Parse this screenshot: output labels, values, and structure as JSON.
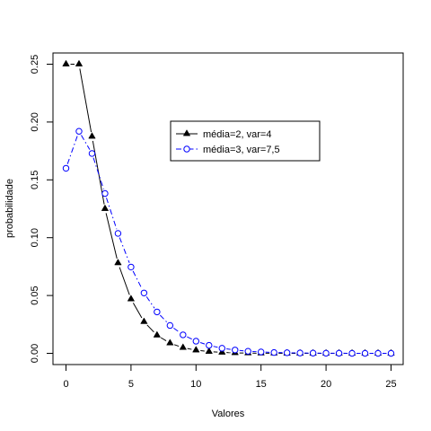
{
  "chart_data": {
    "type": "line",
    "title": "",
    "xlabel": "Valores",
    "ylabel": "probabilidade",
    "xlim": [
      0,
      25
    ],
    "ylim": [
      0,
      0.25
    ],
    "x_ticks": [
      0,
      5,
      10,
      15,
      20,
      25
    ],
    "x_tick_labels": [
      "0",
      "5",
      "10",
      "15",
      "20",
      "25"
    ],
    "y_ticks": [
      0.0,
      0.05,
      0.1,
      0.15,
      0.2,
      0.25
    ],
    "y_tick_labels": [
      "0.00",
      "0.05",
      "0.10",
      "0.15",
      "0.20",
      "0.25"
    ],
    "grid": false,
    "legend_position": "upper-center",
    "x": [
      0,
      1,
      2,
      3,
      4,
      5,
      6,
      7,
      8,
      9,
      10,
      11,
      12,
      13,
      14,
      15,
      16,
      17,
      18,
      19,
      20,
      21,
      22,
      23,
      24,
      25
    ],
    "series": [
      {
        "name": "média=2, var=4",
        "color": "#000000",
        "marker": "filled-triangle",
        "line_style": "solid",
        "values": [
          0.25,
          0.25,
          0.1875,
          0.125,
          0.0781,
          0.0469,
          0.0273,
          0.0156,
          0.0088,
          0.0049,
          0.0027,
          0.0015,
          0.0008,
          0.0004,
          0.0002,
          0.0001,
          0.0001,
          0.0,
          0.0,
          0.0,
          0.0,
          0.0,
          0.0,
          0.0,
          0.0,
          0.0
        ]
      },
      {
        "name": "média=3, var=7,5",
        "color": "#0000ff",
        "marker": "open-circle",
        "line_style": "dashdot",
        "values": [
          0.16,
          0.192,
          0.1728,
          0.1382,
          0.1037,
          0.0746,
          0.0522,
          0.0358,
          0.0241,
          0.016,
          0.0105,
          0.0069,
          0.0044,
          0.0029,
          0.0018,
          0.0012,
          0.0007,
          0.0005,
          0.0003,
          0.0002,
          0.0001,
          0.0001,
          0.0,
          0.0,
          0.0,
          0.0
        ]
      }
    ]
  }
}
